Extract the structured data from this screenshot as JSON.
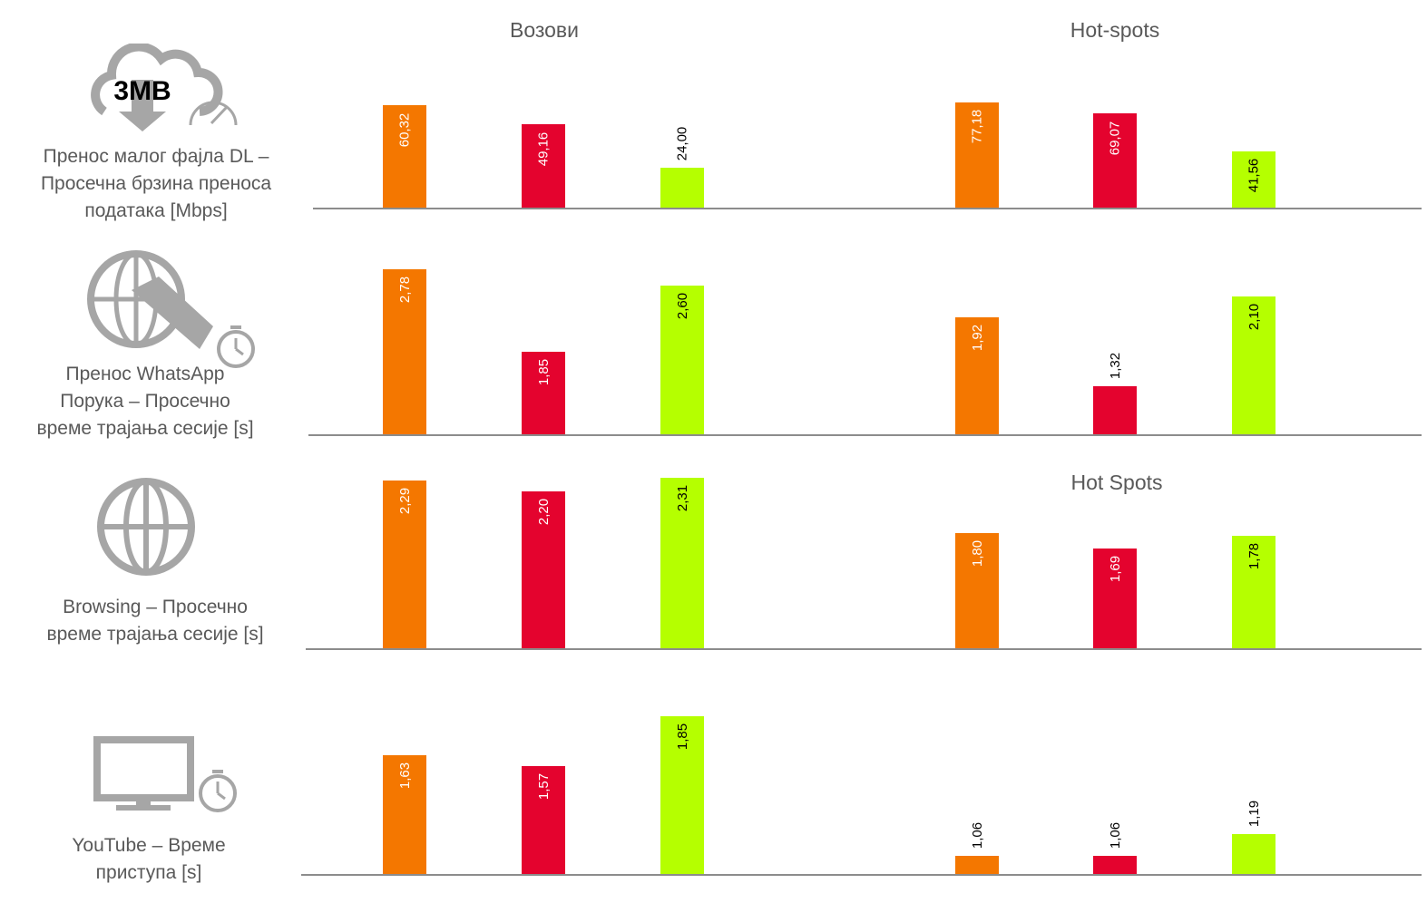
{
  "titles": {
    "top_left": "Возови",
    "top_right": "Hot-spots",
    "row3_right": "Hot Spots"
  },
  "icons": {
    "row1": "cloud-download-3mb-speedometer-icon",
    "row1_text": "3MB",
    "row2": "globe-phone-stopwatch-icon",
    "row3": "globe-icon",
    "row4": "monitor-stopwatch-icon"
  },
  "colors": {
    "series1": "#F47700",
    "series2": "#E4032E",
    "series3": "#B5FF00",
    "axis": "#8C8C8C"
  },
  "chart_data": [
    {
      "type": "bar",
      "metric": "Пренос малог фајла DL – Просечна брзина преноса података [Mbps]",
      "groups": [
        {
          "name": "Возови",
          "values": [
            60.32,
            49.16,
            24.0
          ],
          "labels": [
            "60,32",
            "49,16",
            "24,00"
          ]
        },
        {
          "name": "Hot-spots",
          "values": [
            77.18,
            69.07,
            41.56
          ],
          "labels": [
            "77,18",
            "69,07",
            "41,56"
          ]
        }
      ]
    },
    {
      "type": "bar",
      "metric": "Пренос WhatsApp Порука – Просечно време трајања сесије [s]",
      "groups": [
        {
          "name": "Возови",
          "values": [
            2.78,
            1.85,
            2.6
          ],
          "labels": [
            "2,78",
            "1,85",
            "2,60"
          ]
        },
        {
          "name": "Hot-spots",
          "values": [
            1.92,
            1.32,
            2.1
          ],
          "labels": [
            "1,92",
            "1,32",
            "2,10"
          ]
        }
      ]
    },
    {
      "type": "bar",
      "metric": "Browsing – Просечно време трајања сесије [s]",
      "groups": [
        {
          "name": "Возови",
          "values": [
            2.29,
            2.2,
            2.31
          ],
          "labels": [
            "2,29",
            "2,20",
            "2,31"
          ]
        },
        {
          "name": "Hot Spots",
          "values": [
            1.8,
            1.69,
            1.78
          ],
          "labels": [
            "1,80",
            "1,69",
            "1,78"
          ]
        }
      ]
    },
    {
      "type": "bar",
      "metric": "YouTube – Време приступа [s]",
      "groups": [
        {
          "name": "Возови",
          "values": [
            1.63,
            1.57,
            1.85
          ],
          "labels": [
            "1,63",
            "1,57",
            "1,85"
          ]
        },
        {
          "name": "Hot-spots",
          "values": [
            1.06,
            1.06,
            1.19
          ],
          "labels": [
            "1,06",
            "1,06",
            "1,19"
          ]
        }
      ]
    }
  ]
}
